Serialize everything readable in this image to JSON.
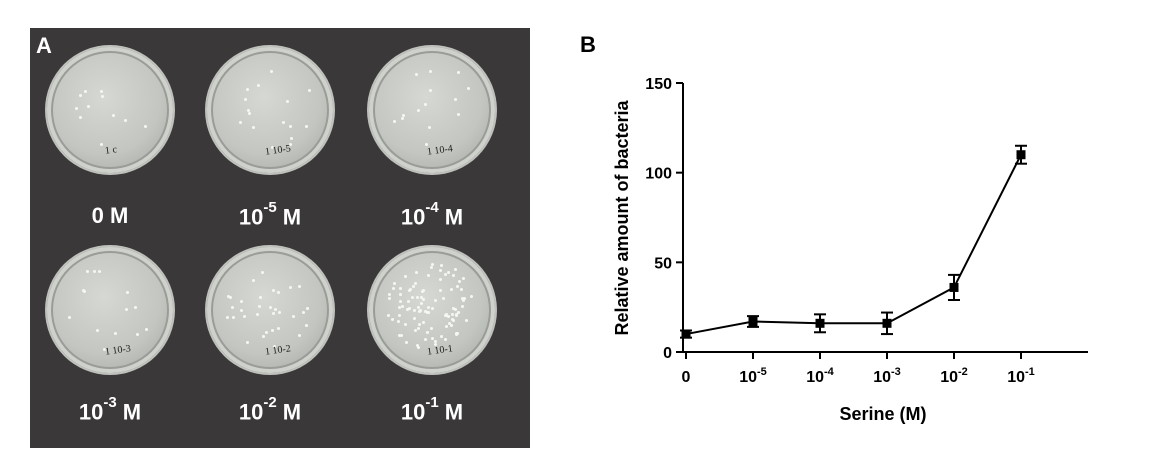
{
  "panel_a": {
    "letter": "A",
    "plates": [
      {
        "base": "0 M",
        "exp": "",
        "unit": "",
        "mark_base": "1",
        "mark_sub": "c",
        "colonies": 12
      },
      {
        "base": "10",
        "exp": "-5",
        "unit": "M",
        "mark_base": "1",
        "mark_sub": "10-5",
        "colonies": 18
      },
      {
        "base": "10",
        "exp": "-4",
        "unit": "M",
        "mark_base": "1",
        "mark_sub": "10-4",
        "colonies": 16
      },
      {
        "base": "10",
        "exp": "-3",
        "unit": "M",
        "mark_base": "1",
        "mark_sub": "10-3",
        "colonies": 16
      },
      {
        "base": "10",
        "exp": "-2",
        "unit": "M",
        "mark_base": "1",
        "mark_sub": "10-2",
        "colonies": 35
      },
      {
        "base": "10",
        "exp": "-1",
        "unit": "M",
        "mark_base": "1",
        "mark_sub": "10-1",
        "colonies": 110
      }
    ]
  },
  "panel_b": {
    "letter": "B"
  },
  "chart_data": {
    "type": "line",
    "title": "",
    "xlabel": "Serine (M)",
    "ylabel": "Relative amount of bacteria",
    "categories": [
      {
        "base": "0",
        "exp": ""
      },
      {
        "base": "10",
        "exp": "-5"
      },
      {
        "base": "10",
        "exp": "-4"
      },
      {
        "base": "10",
        "exp": "-3"
      },
      {
        "base": "10",
        "exp": "-2"
      },
      {
        "base": "10",
        "exp": "-1"
      }
    ],
    "values": [
      10,
      17,
      16,
      16,
      36,
      110
    ],
    "errors": [
      2,
      3,
      5,
      6,
      7,
      5
    ],
    "ylim": [
      0,
      150
    ],
    "yticks": [
      0,
      50,
      100,
      150
    ],
    "grid": false,
    "legend": "none",
    "color": "#000000"
  }
}
